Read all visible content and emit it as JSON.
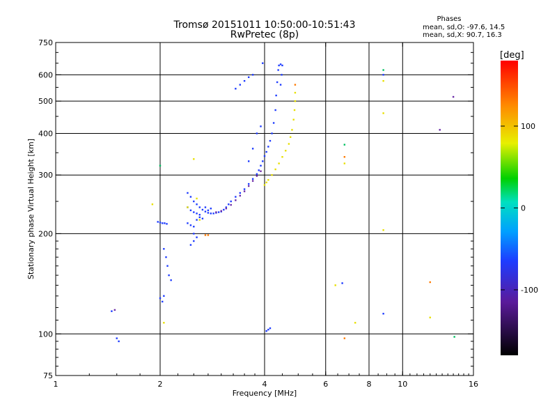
{
  "chart_data": {
    "type": "scatter",
    "title": "Tromsø 20151011 10:50:00-10:51:43",
    "subtitle": "RwPretec (8p)",
    "xlabel": "Frequency [MHz]",
    "ylabel": "Stationary phase Virtual Height [km]",
    "x_scale": "log2",
    "y_scale": "log",
    "xlim": [
      1,
      16
    ],
    "ylim": [
      75,
      750
    ],
    "x_ticks": [
      1,
      2,
      4,
      6,
      8,
      10,
      16
    ],
    "x_tick_labels": [
      "1",
      "2",
      "4",
      "6",
      "8",
      "10",
      "16"
    ],
    "y_ticks": [
      75,
      100,
      200,
      300,
      400,
      500,
      600,
      750
    ],
    "y_tick_labels": [
      "75",
      "100",
      "200",
      "300",
      "400",
      "500",
      "600",
      "750"
    ],
    "grid_x": [
      2,
      4,
      6,
      8,
      10
    ],
    "grid_y": [
      100,
      200,
      300,
      400,
      500,
      600
    ],
    "grid": true,
    "phases_box": {
      "title": "Phases",
      "line_o": "mean, sd,O: -97.6, 14.5",
      "line_x": "mean, sd,X:  90.7, 16.3"
    },
    "colorbar": {
      "label": "[deg]",
      "range": [
        -180,
        180
      ],
      "ticks": [
        -100,
        0,
        100
      ],
      "tick_labels": [
        "-100",
        "0",
        "100"
      ]
    },
    "series": [
      {
        "name": "O-mode trace (blue, ~ -100 deg)",
        "color": "#1e3cff",
        "points": [
          [
            1.97,
            217
          ],
          [
            2.0,
            216
          ],
          [
            2.03,
            215
          ],
          [
            2.06,
            215
          ],
          [
            2.09,
            214
          ],
          [
            2.05,
            180
          ],
          [
            2.08,
            170
          ],
          [
            2.1,
            160
          ],
          [
            2.12,
            150
          ],
          [
            2.15,
            145
          ],
          [
            2.05,
            130
          ],
          [
            2.0,
            128
          ],
          [
            2.03,
            125
          ],
          [
            2.4,
            265
          ],
          [
            2.45,
            258
          ],
          [
            2.5,
            250
          ],
          [
            2.55,
            245
          ],
          [
            2.6,
            240
          ],
          [
            2.65,
            236
          ],
          [
            2.7,
            233
          ],
          [
            2.75,
            231
          ],
          [
            2.8,
            230
          ],
          [
            2.85,
            230
          ],
          [
            2.9,
            231
          ],
          [
            2.95,
            232
          ],
          [
            3.0,
            233
          ],
          [
            2.4,
            240
          ],
          [
            2.45,
            235
          ],
          [
            2.5,
            232
          ],
          [
            2.55,
            230
          ],
          [
            2.6,
            228
          ],
          [
            2.4,
            215
          ],
          [
            2.45,
            212
          ],
          [
            2.5,
            210
          ],
          [
            2.55,
            220
          ],
          [
            2.6,
            224
          ],
          [
            2.65,
            222
          ],
          [
            2.45,
            185
          ],
          [
            2.5,
            190
          ],
          [
            2.55,
            195
          ],
          [
            2.5,
            200
          ],
          [
            2.7,
            240
          ],
          [
            2.75,
            235
          ],
          [
            2.8,
            238
          ],
          [
            3.05,
            236
          ],
          [
            3.1,
            240
          ],
          [
            3.15,
            245
          ],
          [
            3.2,
            250
          ],
          [
            3.3,
            258
          ],
          [
            3.4,
            265
          ],
          [
            3.5,
            272
          ],
          [
            3.6,
            282
          ],
          [
            3.7,
            292
          ],
          [
            3.8,
            302
          ],
          [
            3.85,
            310
          ],
          [
            3.9,
            320
          ],
          [
            3.95,
            330
          ],
          [
            4.0,
            342
          ],
          [
            4.05,
            352
          ],
          [
            4.1,
            365
          ],
          [
            4.15,
            380
          ],
          [
            4.2,
            400
          ],
          [
            4.25,
            430
          ],
          [
            4.3,
            470
          ],
          [
            4.32,
            520
          ],
          [
            4.35,
            570
          ],
          [
            4.38,
            620
          ],
          [
            4.4,
            640
          ],
          [
            4.45,
            645
          ],
          [
            4.5,
            640
          ],
          [
            4.48,
            600
          ],
          [
            4.45,
            560
          ],
          [
            3.6,
            330
          ],
          [
            3.7,
            360
          ],
          [
            3.8,
            400
          ],
          [
            3.9,
            420
          ],
          [
            3.3,
            545
          ],
          [
            3.4,
            560
          ],
          [
            3.5,
            575
          ],
          [
            3.6,
            590
          ],
          [
            3.7,
            600
          ],
          [
            3.95,
            650
          ],
          [
            4.05,
            102
          ],
          [
            4.1,
            103
          ],
          [
            4.15,
            104
          ],
          [
            1.45,
            117
          ],
          [
            1.5,
            97
          ],
          [
            1.52,
            95
          ],
          [
            6.7,
            142
          ],
          [
            8.8,
            115
          ],
          [
            8.8,
            600
          ]
        ]
      },
      {
        "name": "Purple trace (~ -140 deg)",
        "color": "#6a2aa8",
        "points": [
          [
            2.9,
            232
          ],
          [
            3.0,
            234
          ],
          [
            3.1,
            238
          ],
          [
            3.2,
            244
          ],
          [
            3.3,
            252
          ],
          [
            3.4,
            260
          ],
          [
            3.5,
            268
          ],
          [
            3.6,
            278
          ],
          [
            3.7,
            288
          ],
          [
            3.8,
            298
          ],
          [
            3.9,
            308
          ],
          [
            12.8,
            410
          ],
          [
            14.0,
            515
          ],
          [
            1.48,
            118
          ]
        ]
      },
      {
        "name": "X-mode trace (yellow, ~ +100 deg)",
        "color": "#e8e000",
        "points": [
          [
            4.0,
            280
          ],
          [
            4.05,
            285
          ],
          [
            4.1,
            290
          ],
          [
            4.2,
            300
          ],
          [
            4.3,
            312
          ],
          [
            4.4,
            325
          ],
          [
            4.5,
            340
          ],
          [
            4.6,
            355
          ],
          [
            4.7,
            372
          ],
          [
            4.75,
            390
          ],
          [
            4.8,
            410
          ],
          [
            4.85,
            440
          ],
          [
            4.88,
            470
          ],
          [
            4.9,
            500
          ],
          [
            4.9,
            530
          ],
          [
            2.4,
            240
          ],
          [
            2.5,
            335
          ],
          [
            2.55,
            255
          ],
          [
            2.6,
            220
          ],
          [
            1.9,
            245
          ],
          [
            2.05,
            108
          ],
          [
            6.4,
            140
          ],
          [
            6.8,
            325
          ],
          [
            7.3,
            108
          ],
          [
            8.8,
            205
          ],
          [
            8.8,
            460
          ],
          [
            8.8,
            575
          ],
          [
            12.0,
            112
          ]
        ]
      },
      {
        "name": "Orange/red points (~ +140 deg)",
        "color": "#ff7a00",
        "points": [
          [
            2.7,
            198
          ],
          [
            2.75,
            198
          ],
          [
            6.8,
            97
          ],
          [
            12.0,
            143
          ],
          [
            4.9,
            560
          ],
          [
            6.8,
            340
          ]
        ]
      },
      {
        "name": "Green/cyan points (~ 0 to -40 deg)",
        "color": "#00c060",
        "points": [
          [
            8.8,
            620
          ],
          [
            6.8,
            370
          ],
          [
            14.1,
            98
          ],
          [
            2.0,
            320
          ]
        ]
      }
    ]
  }
}
